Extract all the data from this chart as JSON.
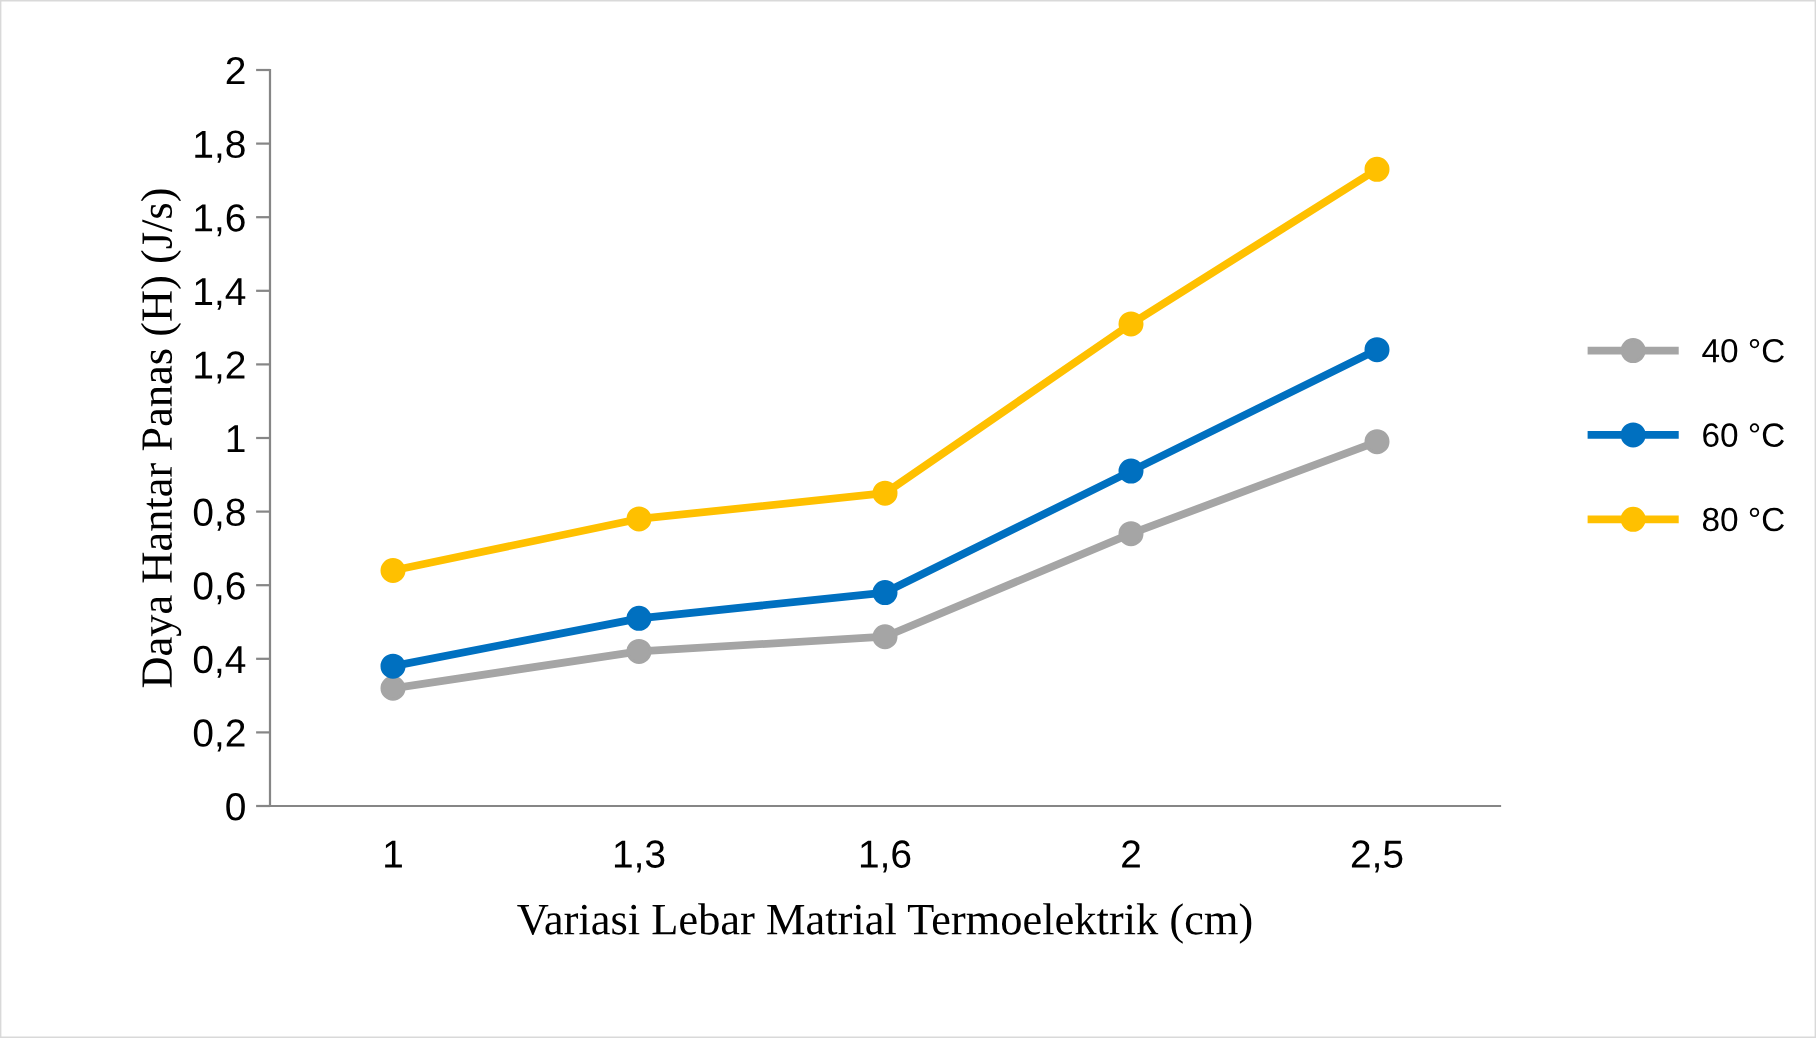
{
  "chart_data": {
    "type": "line",
    "xlabel": "Variasi Lebar Matrial Termoelektrik (cm)",
    "ylabel": "Daya Hantar Panas (H) (J/s)",
    "categories": [
      "1",
      "1,3",
      "1,6",
      "2",
      "2,5"
    ],
    "series": [
      {
        "name": "40 °C",
        "color": "#a5a5a5",
        "values": [
          0.32,
          0.42,
          0.46,
          0.74,
          0.99
        ]
      },
      {
        "name": "60 °C",
        "color": "#0070c0",
        "values": [
          0.38,
          0.51,
          0.58,
          0.91,
          1.24
        ]
      },
      {
        "name": "80 °C",
        "color": "#ffc000",
        "values": [
          0.64,
          0.78,
          0.85,
          1.31,
          1.73
        ]
      }
    ],
    "ylim": [
      0,
      2
    ],
    "yticks": [
      0,
      {
        "value": 0.2,
        "label": "0,2"
      },
      {
        "value": 0.4,
        "label": "0,4"
      },
      {
        "value": 0.6,
        "label": "0,6"
      },
      {
        "value": 0.8,
        "label": "0,8"
      },
      1,
      {
        "value": 1.2,
        "label": "1,2"
      },
      {
        "value": 1.4,
        "label": "1,4"
      },
      {
        "value": 1.6,
        "label": "1,6"
      },
      {
        "value": 1.8,
        "label": "1,8"
      },
      2
    ],
    "grid": false,
    "legend": "right",
    "marker": "circle",
    "line_style": "solid"
  }
}
